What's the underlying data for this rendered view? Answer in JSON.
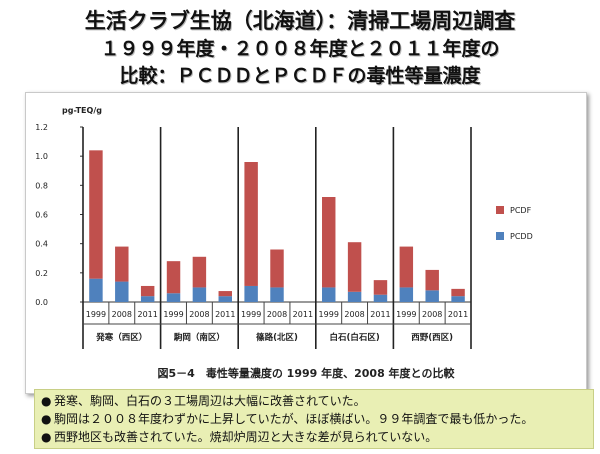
{
  "title": {
    "line1": "生活クラブ生協（北海道）：清掃工場周辺調査",
    "line2": "１９９９年度・２００８年度と２０１１年度の",
    "line3": "比較：ＰＣＤＤとＰＣＤＦの毒性等量濃度"
  },
  "caption": "図5－4　毒性等量濃度の 1999 年度、2008 年度との比較",
  "notes": [
    {
      "bullet": "●",
      "text": "発寒、駒岡、白石の３工場周辺は大幅に改善されていた。"
    },
    {
      "bullet": "●",
      "text": "駒岡は２００８年度わずかに上昇していたが、ほぼ横ばい。９９年調査で最も低かった。"
    },
    {
      "bullet": "●",
      "text": "西野地区も改善されていた。焼却炉周辺と大きな差が見られていない。"
    }
  ],
  "chart_data": {
    "type": "bar",
    "stacked": true,
    "ylabel": "pg-TEQ/g",
    "ylim": [
      0,
      1.2
    ],
    "yticks": [
      "0.0",
      "0.2",
      "0.4",
      "0.6",
      "0.8",
      "1.0",
      "1.2"
    ],
    "groups": [
      "発寒（西区）",
      "駒岡（南区）",
      "篠路(北区)",
      "白石(白石区)",
      "西野(西区)"
    ],
    "years": [
      "1999",
      "2008",
      "2011"
    ],
    "legend_position": "right",
    "series": [
      {
        "name": "PCDD",
        "color": "#4f81bd",
        "values": [
          [
            0.16,
            0.14,
            0.04
          ],
          [
            0.06,
            0.1,
            0.04
          ],
          [
            0.11,
            0.1,
            null
          ],
          [
            0.1,
            0.07,
            0.05
          ],
          [
            0.1,
            0.08,
            0.04
          ]
        ]
      },
      {
        "name": "PCDF",
        "color": "#c0504d",
        "values": [
          [
            0.88,
            0.24,
            0.07
          ],
          [
            0.22,
            0.21,
            0.035
          ],
          [
            0.85,
            0.26,
            null
          ],
          [
            0.62,
            0.34,
            0.1
          ],
          [
            0.28,
            0.14,
            0.05
          ]
        ]
      }
    ]
  }
}
